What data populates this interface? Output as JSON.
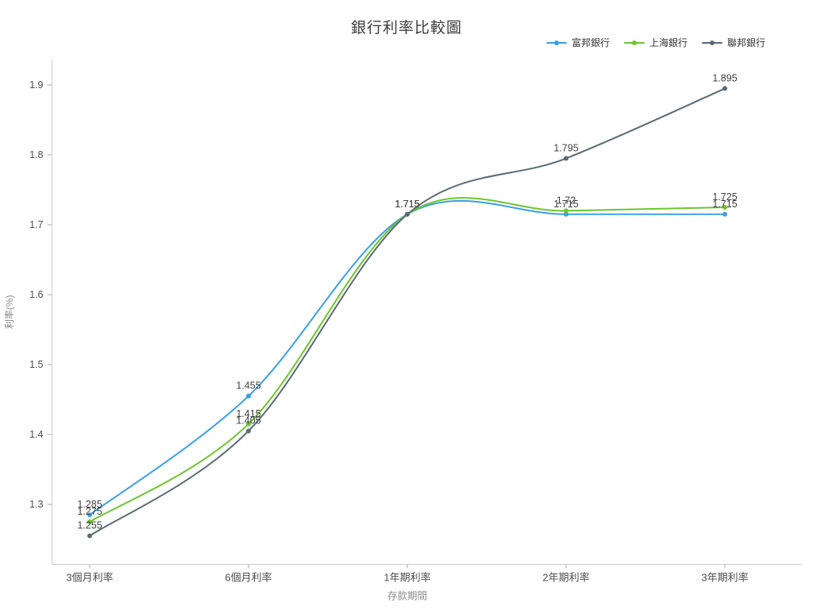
{
  "header": {
    "title": "銀行利率比較圖"
  },
  "chart_data": {
    "type": "line",
    "smooth": true,
    "categories": [
      "3個月利率",
      "6個月利率",
      "1年期利率",
      "2年期利率",
      "3年期利率"
    ],
    "series": [
      {
        "name": "富邦銀行",
        "color": "#3b9fe6",
        "values": [
          1.285,
          1.455,
          1.715,
          1.715,
          1.715
        ]
      },
      {
        "name": "上海銀行",
        "color": "#6ec52f",
        "values": [
          1.275,
          1.415,
          1.715,
          1.72,
          1.725
        ]
      },
      {
        "name": "聯邦銀行",
        "color": "#5a6b75",
        "values": [
          1.255,
          1.405,
          1.715,
          1.795,
          1.895
        ]
      }
    ],
    "title": "銀行利率比較圖",
    "xlabel": "存款期間",
    "ylabel": "利率(%)",
    "yticks": [
      1.3,
      1.4,
      1.5,
      1.6,
      1.7,
      1.8,
      1.9
    ],
    "ylim": [
      1.215,
      1.936
    ],
    "grid": false,
    "legend_position": "top-right",
    "show_data_labels": true
  },
  "style": {
    "axis_line_color": "#cccccc",
    "tick_label_color": "#4d4d4d",
    "axis_title_color": "#8a8a8a",
    "data_label_color": "#404040",
    "title_color": "#3c3c3c"
  }
}
